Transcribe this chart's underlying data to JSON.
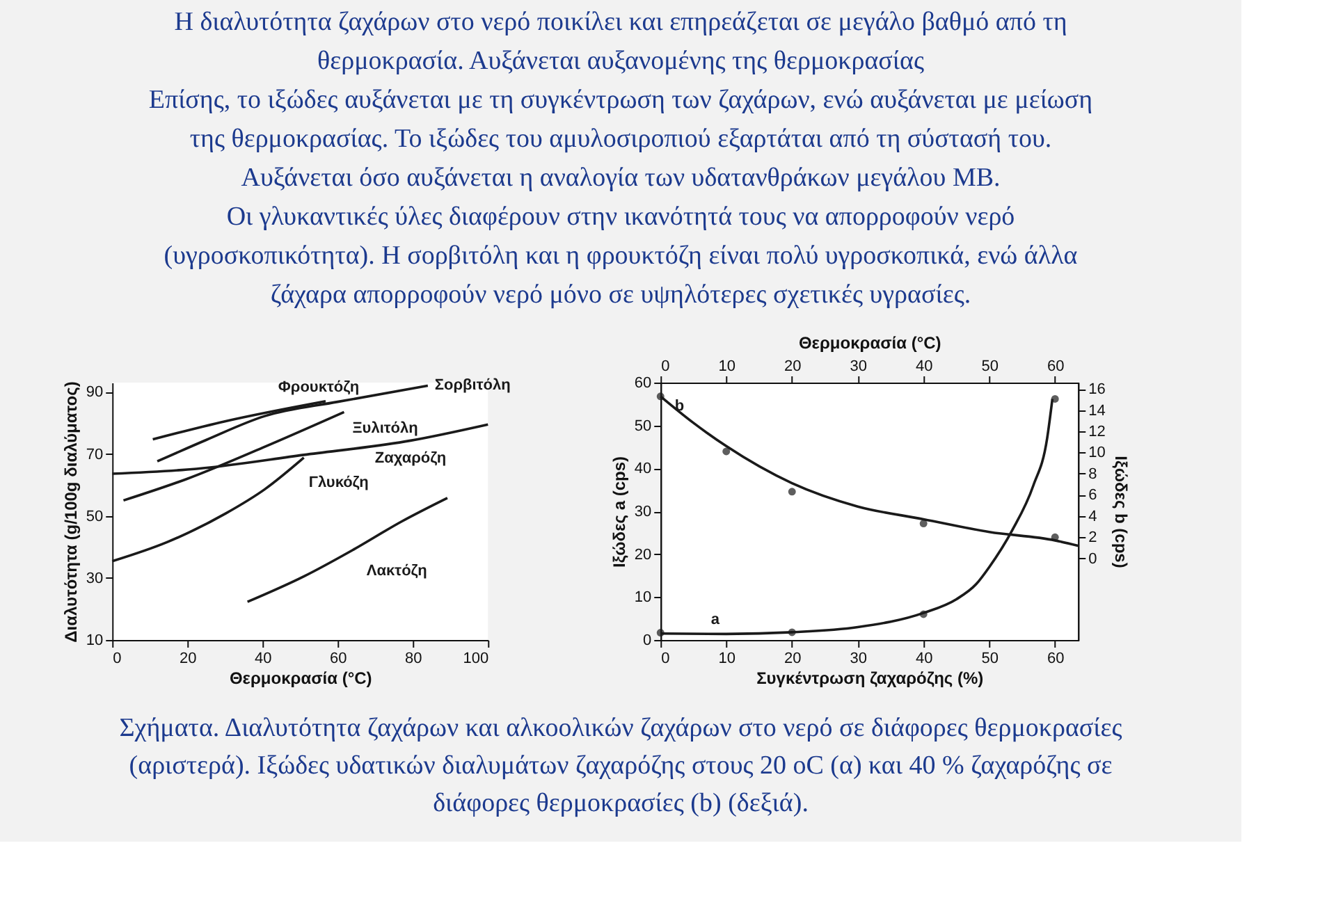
{
  "chart_data": [
    {
      "type": "line",
      "title": "Η διαλυτότητα ζαχάρων στο νερό ποικίλει και επηρεάζεται σε μεγάλο βαθμό από τη\nθερμοκρασία. Αυξάνεται αυξανομένης της θερμοκρασίας\nΕπίσης, το ιξώδες αυξάνεται με τη συγκέντρωση των ζαχάρων, ενώ αυξάνεται με μείωση\nτης θερμοκρασίας. Το ιξώδες του αμυλοσιροπιού εξαρτάται από τη σύστασή του.\nΑυξάνεται όσο αυξάνεται η αναλογία των υδατανθράκων μεγάλου ΜΒ.\nΟι γλυκαντικές ύλες διαφέρουν στην ικανότητά τους να απορροφούν νερό\n(υγροσκοπικότητα). Η σορβιτόλη και η φρουκτόζη είναι πολύ υγροσκοπικά, ενώ άλλα\nζάχαρα απορροφούν νερό μόνο σε υψηλότερες σχετικές υγρασίες.",
      "xlabel": "Θερμοκρασία (°C)",
      "ylabel": "Διαλυτότητα (g/100g διαλύματος)",
      "xlim": [
        0,
        100
      ],
      "xticks": [
        0,
        20,
        40,
        60,
        80,
        100
      ],
      "ylim": [
        10,
        93
      ],
      "yticks": [
        10,
        30,
        50,
        70,
        90
      ],
      "grid": false,
      "legend": false,
      "marker": "none",
      "series": [
        {
          "name": "Φρουκτόζη",
          "color": "#1a1a1a",
          "x": [
            10.8,
            30,
            56.8
          ],
          "values": [
            74.7,
            80.5,
            87.0
          ]
        },
        {
          "name": "Σορβιτόλη",
          "color": "#1a1a1a",
          "x": [
            12,
            25,
            40.6,
            60,
            84
          ],
          "values": [
            67.6,
            74.5,
            82.2,
            86.8,
            92.0
          ]
        },
        {
          "name": "Ξυλιτόλη",
          "color": "#1a1a1a",
          "x": [
            3,
            20,
            40,
            61.7
          ],
          "values": [
            55,
            62,
            72,
            83.5
          ]
        },
        {
          "name": "Ζαχαρόζη",
          "color": "#1a1a1a",
          "x": [
            0,
            22.4,
            51,
            79.4,
            100
          ],
          "values": [
            63.6,
            65.2,
            69.7,
            74.3,
            79.5
          ]
        },
        {
          "name": "Γλυκόζη",
          "color": "#1a1a1a",
          "x": [
            0,
            14.7,
            30.2,
            40.6,
            51
          ],
          "values": [
            35.4,
            41.6,
            50.8,
            58.6,
            68.8
          ]
        },
        {
          "name": "Λακτόζη",
          "color": "#1a1a1a",
          "x": [
            36,
            51,
            64,
            77,
            89.2
          ],
          "values": [
            22.3,
            30.5,
            39,
            48.2,
            55.8
          ]
        }
      ]
    },
    {
      "type": "line",
      "xlabel": "Συγκέντρωση ζαχαρόζης (%)",
      "x2label": "Θερμοκρασία (°C)",
      "ylabel": "Ιξώδες a (cps)",
      "y2label": "Ιξώδες b (cps)",
      "xlim": [
        0,
        63.5
      ],
      "xticks": [
        0,
        10,
        20,
        30,
        40,
        50,
        60
      ],
      "x2lim": [
        0,
        63.5
      ],
      "x2ticks": [
        0,
        10,
        20,
        30,
        40,
        50,
        60
      ],
      "ylim": [
        0,
        60
      ],
      "yticks": [
        0,
        10,
        20,
        30,
        40,
        50,
        60
      ],
      "y2lim": [
        -7.7,
        16.6
      ],
      "y2ticks": [
        0,
        2,
        4,
        6,
        8,
        10,
        12,
        14,
        16
      ],
      "grid": false,
      "legend": false,
      "series": [
        {
          "type": "line",
          "name": "a",
          "marker": "none",
          "color": "#1a1a1a",
          "x": [
            0,
            10,
            20,
            30,
            40,
            45,
            48,
            50,
            53.5,
            56.7,
            58.8,
            59.6
          ],
          "values": [
            1.5,
            1.4,
            1.8,
            3,
            6.3,
            9.5,
            13,
            17,
            25.6,
            36,
            47,
            56.2
          ]
        },
        {
          "type": "scatter",
          "marker": "circle",
          "color": "#1a1a1a",
          "x": [
            0,
            20,
            40,
            60
          ],
          "values": [
            1.7,
            1.8,
            6.0,
            56.2
          ]
        },
        {
          "type": "line",
          "name": "b",
          "marker": "none",
          "axis": "y2",
          "color": "#1a1a1a",
          "x": [
            0,
            5,
            10,
            20,
            30,
            40,
            50,
            60,
            63.5
          ],
          "values": [
            15.3,
            12.8,
            10.6,
            7.1,
            4.9,
            3.7,
            2.5,
            1.7,
            1.2
          ]
        },
        {
          "type": "scatter",
          "marker": "circle",
          "axis": "y2",
          "color": "#1a1a1a",
          "x": [
            0,
            10,
            20,
            40,
            60
          ],
          "values": [
            15.3,
            10.1,
            6.3,
            3.3,
            2.0
          ]
        }
      ],
      "annotations": [
        "Σχήματα. Διαλυτότητα ζαχάρων και αλκοολικών ζαχάρων στο νερό σε διάφορες θερμοκρασίες\n(αριστερά). Ιξώδες υδατικών διαλυμάτων ζαχαρόζης στους 20 oC (α) και 40 % ζαχαρόζης σε\nδιάφορες θερμοκρασίες (b) (δεξιά)."
      ]
    }
  ]
}
